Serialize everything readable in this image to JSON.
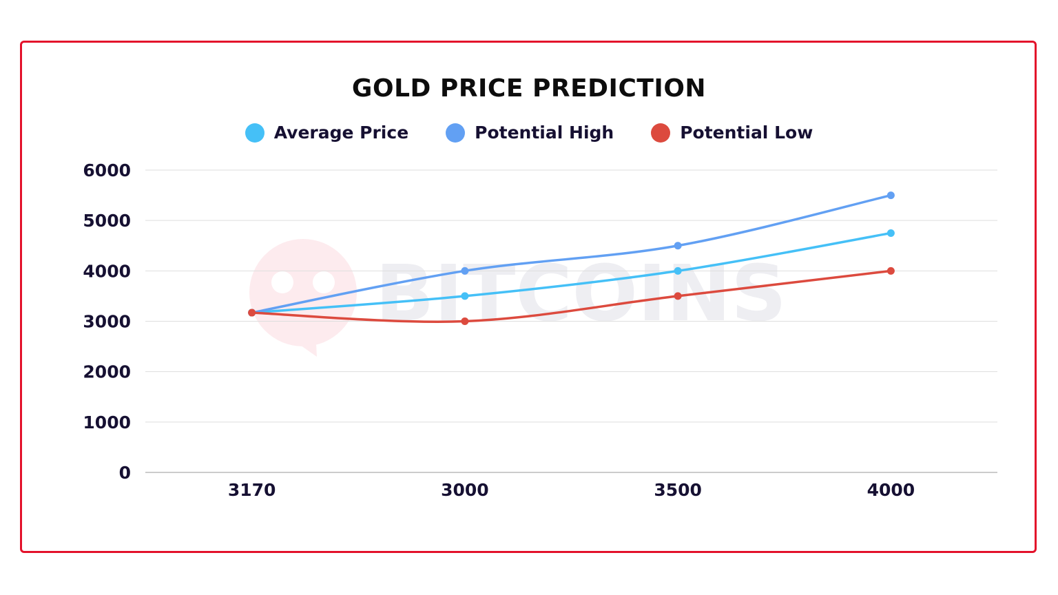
{
  "chart_data": {
    "type": "line",
    "title": "GOLD PRICE PREDICTION",
    "categories": [
      "3170",
      "3000",
      "3500",
      "4000"
    ],
    "series": [
      {
        "name": "Average Price",
        "color": "#45c0f7",
        "values": [
          3170,
          3500,
          4000,
          4750
        ]
      },
      {
        "name": "Potential High",
        "color": "#62a0f3",
        "values": [
          3170,
          4000,
          4500,
          5500
        ]
      },
      {
        "name": "Potential Low",
        "color": "#dc4a3e",
        "values": [
          3170,
          3000,
          3500,
          4000
        ]
      }
    ],
    "yticks": [
      "0",
      "1000",
      "2000",
      "3000",
      "4000",
      "5000",
      "6000"
    ],
    "ylim": [
      0,
      6000
    ],
    "grid": true,
    "legend": "top",
    "smooth": true,
    "xlabel": "",
    "ylabel": ""
  },
  "watermark": "BITCOINS",
  "colors": {
    "border": "#e3122b"
  }
}
